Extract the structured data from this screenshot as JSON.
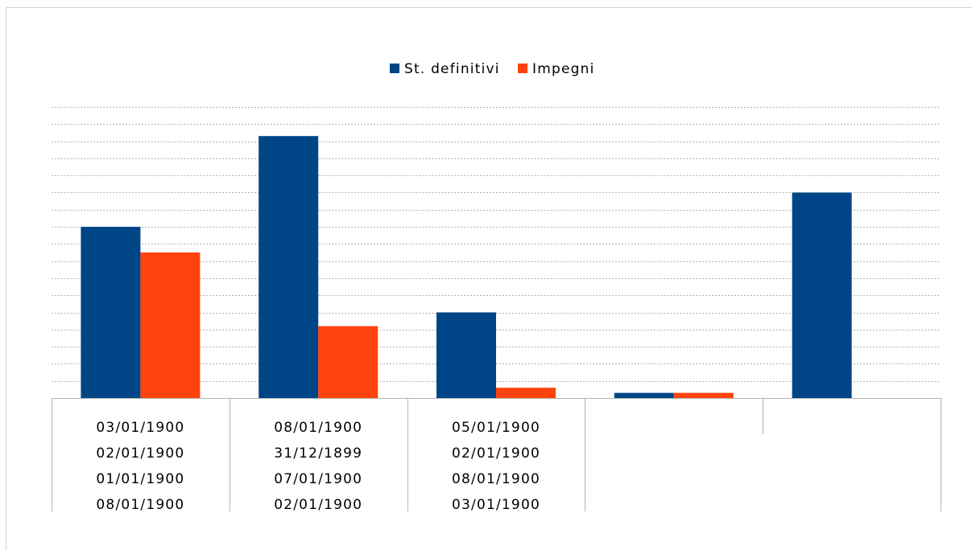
{
  "chart_data": {
    "type": "bar",
    "categories": [
      [
        "03/01/1900",
        "02/01/1900",
        "01/01/1900",
        "08/01/1900"
      ],
      [
        "08/01/1900",
        "31/12/1899",
        "07/01/1900",
        "02/01/1900"
      ],
      [
        "05/01/1900",
        "02/01/1900",
        "08/01/1900",
        "03/01/1900"
      ],
      [],
      []
    ],
    "series": [
      {
        "name": "St. definitivi",
        "values": [
          5.0,
          7.65,
          2.5,
          0.15,
          6.0
        ]
      },
      {
        "name": "Impegni",
        "values": [
          4.25,
          2.1,
          0.3,
          0.15,
          0
        ]
      }
    ],
    "ylim": [
      0,
      8.5
    ],
    "y_gridlines": 8.5,
    "grid": true,
    "legend_position": "top-center",
    "colors": {
      "St. definitivi": "#004586",
      "Impegni": "#ff420e",
      "grid": "#b3b3b3",
      "axis": "#b3b3b3"
    }
  }
}
